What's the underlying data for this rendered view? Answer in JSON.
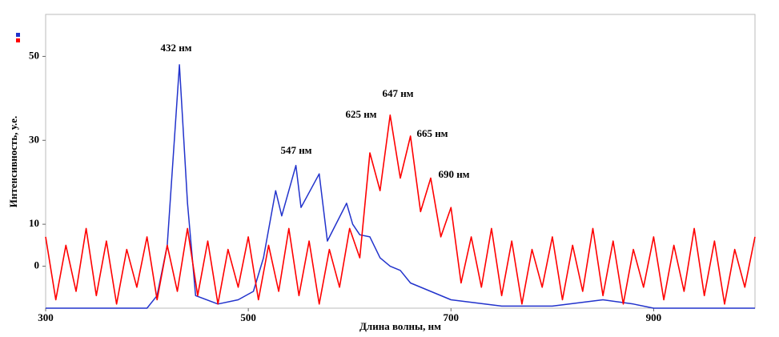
{
  "chart_data": {
    "type": "line",
    "xlabel": "Длина волны, нм",
    "ylabel": "Интенсивность, у.е.",
    "xlim": [
      300,
      1000
    ],
    "xticks": [
      300,
      500,
      700,
      900
    ],
    "ylim": [
      -10,
      60
    ],
    "yticks": [
      0,
      10,
      30,
      50
    ],
    "grid": false,
    "series": [
      {
        "color": "#2233cc",
        "x": [
          300,
          400,
          410,
          420,
          432,
          440,
          448,
          470,
          490,
          505,
          515,
          527,
          533,
          547,
          552,
          570,
          578,
          597,
          603,
          610,
          620,
          630,
          640,
          650,
          660,
          700,
          750,
          800,
          850,
          880,
          900,
          1000
        ],
        "values": [
          -10,
          -10,
          -7,
          5,
          48,
          15,
          -7,
          -9,
          -8,
          -6,
          2,
          18,
          12,
          24,
          14,
          22,
          6,
          15,
          10,
          7.5,
          7,
          2,
          0,
          -1,
          -4,
          -8,
          -9.5,
          -9.5,
          -8,
          -9,
          -10,
          -10
        ]
      },
      {
        "color": "#ff0000",
        "x": [
          300,
          310,
          320,
          330,
          340,
          350,
          360,
          370,
          380,
          390,
          400,
          410,
          420,
          430,
          440,
          450,
          460,
          470,
          480,
          490,
          500,
          510,
          520,
          530,
          540,
          550,
          560,
          570,
          580,
          590,
          600,
          610,
          620,
          630,
          640,
          650,
          660,
          670,
          680,
          690,
          700,
          710,
          720,
          730,
          740,
          750,
          760,
          770,
          780,
          790,
          800,
          810,
          820,
          830,
          840,
          850,
          860,
          870,
          880,
          890,
          900,
          910,
          920,
          930,
          940,
          950,
          960,
          970,
          980,
          990,
          1000
        ],
        "values": [
          7,
          -8,
          5,
          -6,
          9,
          -7,
          6,
          -9,
          4,
          -5,
          7,
          -8,
          5,
          -6,
          9,
          -7,
          6,
          -9,
          4,
          -5,
          7,
          -8,
          5,
          -6,
          9,
          -7,
          6,
          -9,
          4,
          -5,
          9,
          2,
          27,
          18,
          36,
          21,
          31,
          13,
          21,
          7,
          14,
          -4,
          7,
          -5,
          9,
          -7,
          6,
          -9,
          4,
          -5,
          7,
          -8,
          5,
          -6,
          9,
          -7,
          6,
          -9,
          4,
          -5,
          7,
          -8,
          5,
          -6,
          9,
          -7,
          6,
          -9,
          4,
          -5,
          7
        ]
      }
    ],
    "annotations": [
      "432 нм",
      "547 нм",
      "625 нм",
      "647 нм",
      "665 нм",
      "690 нм"
    ]
  }
}
